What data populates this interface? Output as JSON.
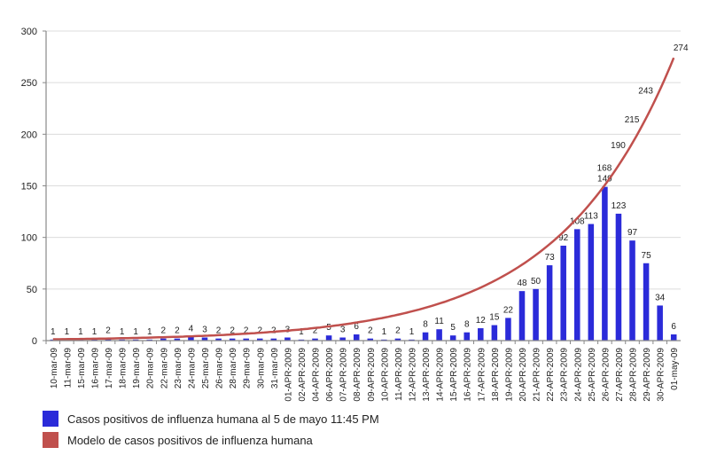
{
  "chart_data": {
    "type": "bar+line",
    "title": "",
    "xlabel": "",
    "ylabel": "",
    "ylim": [
      0,
      300
    ],
    "yticks": [
      0,
      50,
      100,
      150,
      200,
      250,
      300
    ],
    "grid": true,
    "legend_position": "bottom-left",
    "categories": [
      "10-mar-09",
      "11-mar-09",
      "15-mar-09",
      "16-mar-09",
      "17-mar-09",
      "18-mar-09",
      "19-mar-09",
      "20-mar-09",
      "22-mar-09",
      "23-mar-09",
      "24-mar-09",
      "25-mar-09",
      "26-mar-09",
      "28-mar-09",
      "29-mar-09",
      "30-mar-09",
      "31-mar-09",
      "01-APR-2009",
      "02-APR-2009",
      "04-APR-2009",
      "06-APR-2009",
      "07-APR-2009",
      "08-APR-2009",
      "09-APR-2009",
      "10-APR-2009",
      "11-APR-2009",
      "12-APR-2009",
      "13-APR-2009",
      "14-APR-2009",
      "15-APR-2009",
      "16-APR-2009",
      "17-APR-2009",
      "18-APR-2009",
      "19-APR-2009",
      "20-APR-2009",
      "21-APR-2009",
      "22-APR-2009",
      "23-APR-2009",
      "24-APR-2009",
      "25-APR-2009",
      "26-APR-2009",
      "27-APR-2009",
      "28-APR-2009",
      "29-APR-2009",
      "30-APR-2009",
      "01-may-09"
    ],
    "series": [
      {
        "name": "Casos positivos de influenza humana al 5 de mayo 11:45 PM",
        "type": "bar",
        "color": "#2b2bd9",
        "values": [
          1,
          1,
          1,
          1,
          2,
          1,
          1,
          1,
          2,
          2,
          4,
          3,
          2,
          2,
          2,
          2,
          2,
          3,
          1,
          2,
          5,
          3,
          6,
          2,
          1,
          2,
          1,
          8,
          11,
          5,
          8,
          12,
          15,
          22,
          48,
          50,
          73,
          92,
          108,
          113,
          149,
          123,
          97,
          75,
          34,
          6
        ]
      },
      {
        "name": "Modelo de casos positivos de influenza  humana",
        "type": "line",
        "color": "#c0504d",
        "labeled_points": {
          "26-APR-2009": 149,
          "27-APR-2009": 168,
          "28-APR-2009": 190,
          "29-APR-2009": 215,
          "30-APR-2009": 243,
          "01-may-09": 274
        }
      }
    ]
  },
  "legend": {
    "items": [
      {
        "label": "Casos positivos de influenza humana al 5 de mayo 11:45 PM",
        "color": "#2b2bd9"
      },
      {
        "label": "Modelo de casos positivos de influenza  humana",
        "color": "#c0504d"
      }
    ]
  }
}
